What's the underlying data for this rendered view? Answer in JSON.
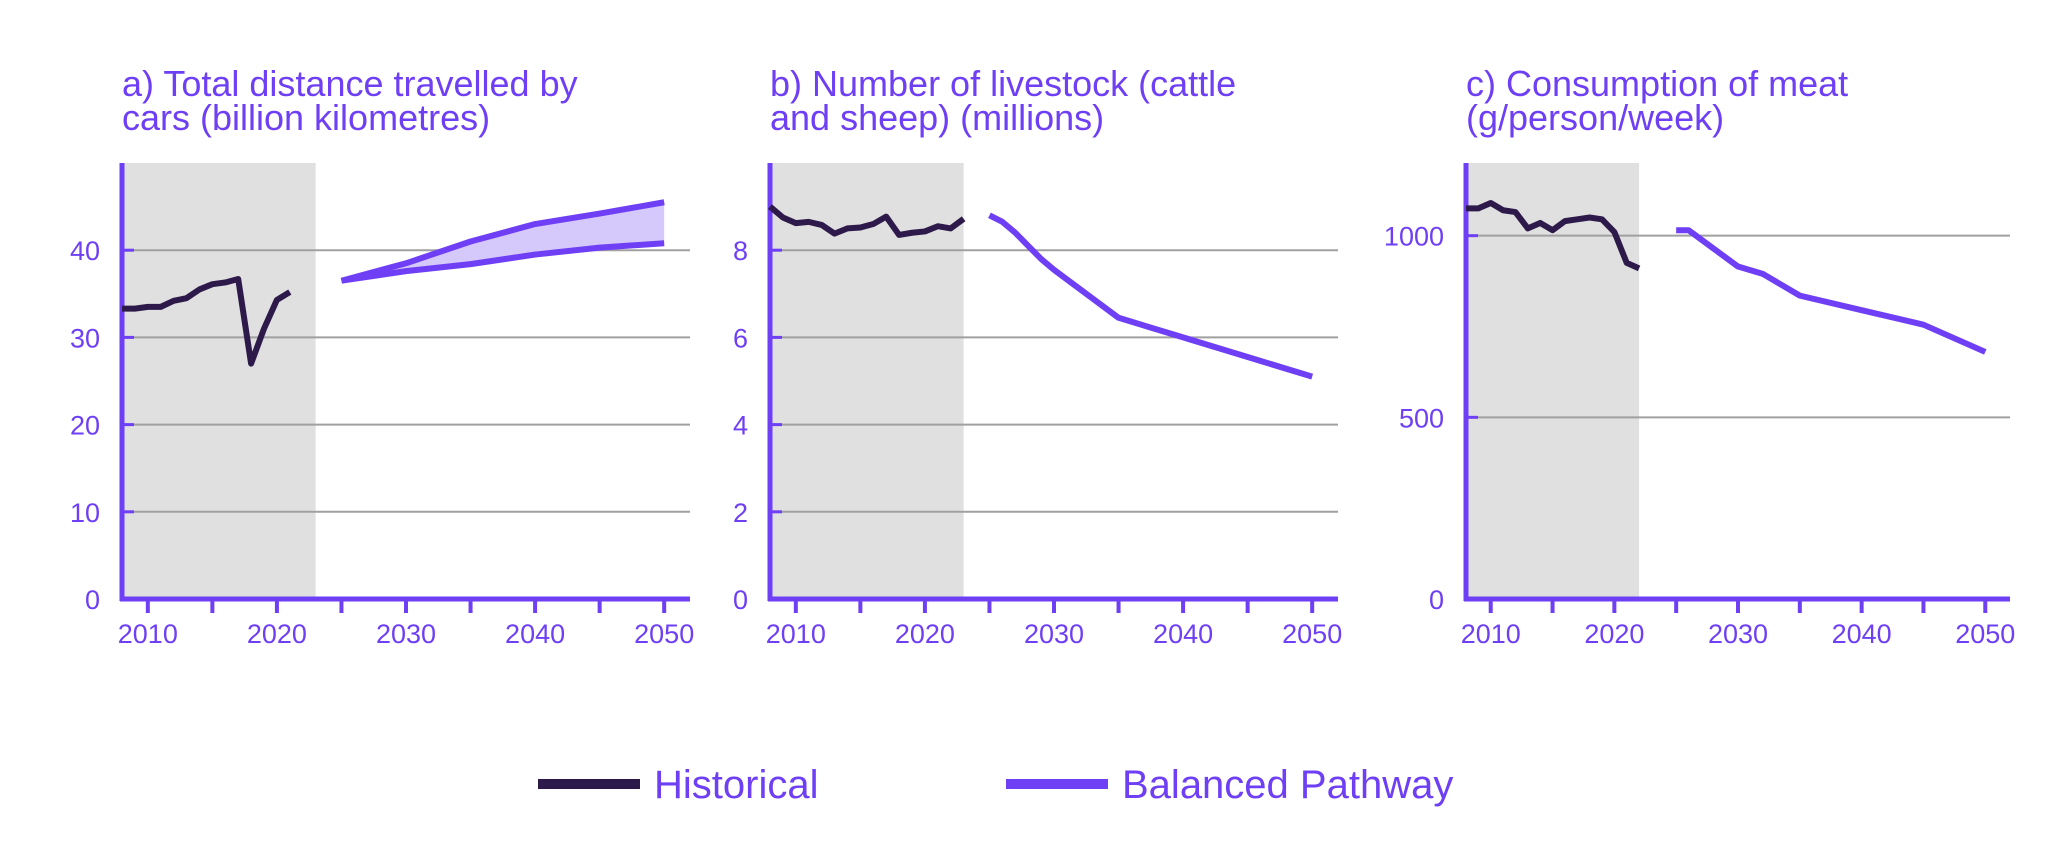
{
  "colors": {
    "historical": "#2e1a4a",
    "pathway": "#6e3ff5",
    "band_fill": "#d5c8fb",
    "grid": "#a0a0a0",
    "history_shade": "#e0e0e0",
    "text": "#6e3ff5"
  },
  "legend": {
    "historical": "Historical",
    "pathway": "Balanced Pathway"
  },
  "chart_data": [
    {
      "type": "line",
      "title_lines": [
        "a) Total distance travelled by",
        "cars (billion kilometres)"
      ],
      "xlim": [
        2008,
        2052
      ],
      "ylim": [
        0,
        50
      ],
      "x_ticks": [
        2010,
        2020,
        2030,
        2040,
        2050
      ],
      "y_ticks": [
        0,
        10,
        20,
        30,
        40
      ],
      "shaded_until": 2023,
      "grid": "horizontal",
      "historical": {
        "x": [
          2008,
          2009,
          2010,
          2011,
          2012,
          2013,
          2014,
          2015,
          2016,
          2017,
          2018,
          2019,
          2020,
          2021,
          2022,
          2023
        ],
        "y": [
          33.3,
          33.3,
          33.5,
          33.5,
          34.2,
          34.5,
          35.5,
          36.1,
          36.3,
          36.7,
          27.0,
          31.0,
          34.3,
          35.2,
          null,
          null
        ]
      },
      "pathway": {
        "x": [
          2025,
          2030,
          2035,
          2040,
          2045,
          2050
        ],
        "upper": [
          36.5,
          38.5,
          41.0,
          43.0,
          44.2,
          45.5
        ],
        "lower": [
          36.5,
          37.6,
          38.4,
          39.5,
          40.3,
          40.8
        ]
      }
    },
    {
      "type": "line",
      "title_lines": [
        "b) Number of livestock (cattle",
        "and sheep) (millions)"
      ],
      "xlim": [
        2008,
        2052
      ],
      "ylim": [
        0,
        10
      ],
      "x_ticks": [
        2010,
        2020,
        2030,
        2040,
        2050
      ],
      "y_ticks": [
        0,
        2,
        4,
        6,
        8
      ],
      "shaded_until": 2023,
      "grid": "horizontal",
      "historical": {
        "x": [
          2008,
          2009,
          2010,
          2011,
          2012,
          2013,
          2014,
          2015,
          2016,
          2017,
          2018,
          2019,
          2020,
          2021,
          2022,
          2023
        ],
        "y": [
          9.0,
          8.75,
          8.62,
          8.65,
          8.58,
          8.38,
          8.5,
          8.52,
          8.6,
          8.77,
          8.35,
          8.4,
          8.43,
          8.55,
          8.5,
          8.72
        ]
      },
      "pathway": {
        "x": [
          2025,
          2026,
          2027,
          2028,
          2029,
          2030,
          2035,
          2040,
          2045,
          2050
        ],
        "y": [
          8.8,
          8.65,
          8.4,
          8.1,
          7.8,
          7.55,
          6.45,
          6.0,
          5.55,
          5.1
        ]
      }
    },
    {
      "type": "line",
      "title_lines": [
        "c) Consumption of meat",
        "(g/person/week)"
      ],
      "xlim": [
        2008,
        2052
      ],
      "ylim": [
        0,
        1200
      ],
      "x_ticks": [
        2010,
        2020,
        2030,
        2040,
        2050
      ],
      "y_ticks": [
        0,
        500,
        1000
      ],
      "shaded_until": 2022,
      "grid": "horizontal",
      "historical": {
        "x": [
          2008,
          2009,
          2010,
          2011,
          2012,
          2013,
          2014,
          2015,
          2016,
          2017,
          2018,
          2019,
          2020,
          2021,
          2022
        ],
        "y": [
          1075,
          1075,
          1090,
          1070,
          1065,
          1020,
          1035,
          1015,
          1040,
          1045,
          1050,
          1045,
          1010,
          925,
          910
        ]
      },
      "pathway": {
        "x": [
          2025,
          2026,
          2030,
          2032,
          2035,
          2040,
          2045,
          2050
        ],
        "y": [
          1015,
          1015,
          915,
          895,
          835,
          795,
          755,
          680
        ]
      }
    }
  ]
}
